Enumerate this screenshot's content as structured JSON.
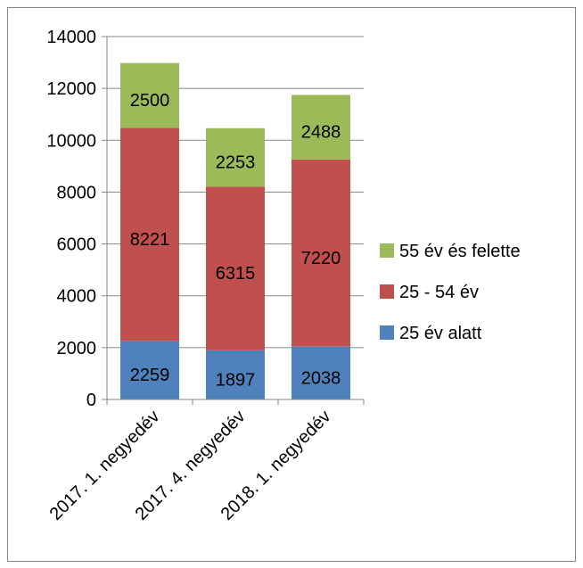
{
  "chart_data": {
    "type": "bar",
    "stacked": true,
    "title": "",
    "xlabel": "",
    "ylabel": "",
    "ylim": [
      0,
      14000
    ],
    "yticks": [
      0,
      2000,
      4000,
      6000,
      8000,
      10000,
      12000,
      14000
    ],
    "grid": true,
    "legend_position": "right",
    "categories": [
      "2017. 1. negyedév",
      "2017. 4. negyedév",
      "2018. 1. negyedév"
    ],
    "series": [
      {
        "name": "25 év alatt",
        "values": [
          2259,
          1897,
          2038
        ],
        "color": "#4f81bd"
      },
      {
        "name": "25 - 54 év",
        "values": [
          8221,
          6315,
          7220
        ],
        "color": "#c0504d"
      },
      {
        "name": "55 év és felette",
        "values": [
          2500,
          2253,
          2488
        ],
        "color": "#9bbb59"
      }
    ]
  }
}
